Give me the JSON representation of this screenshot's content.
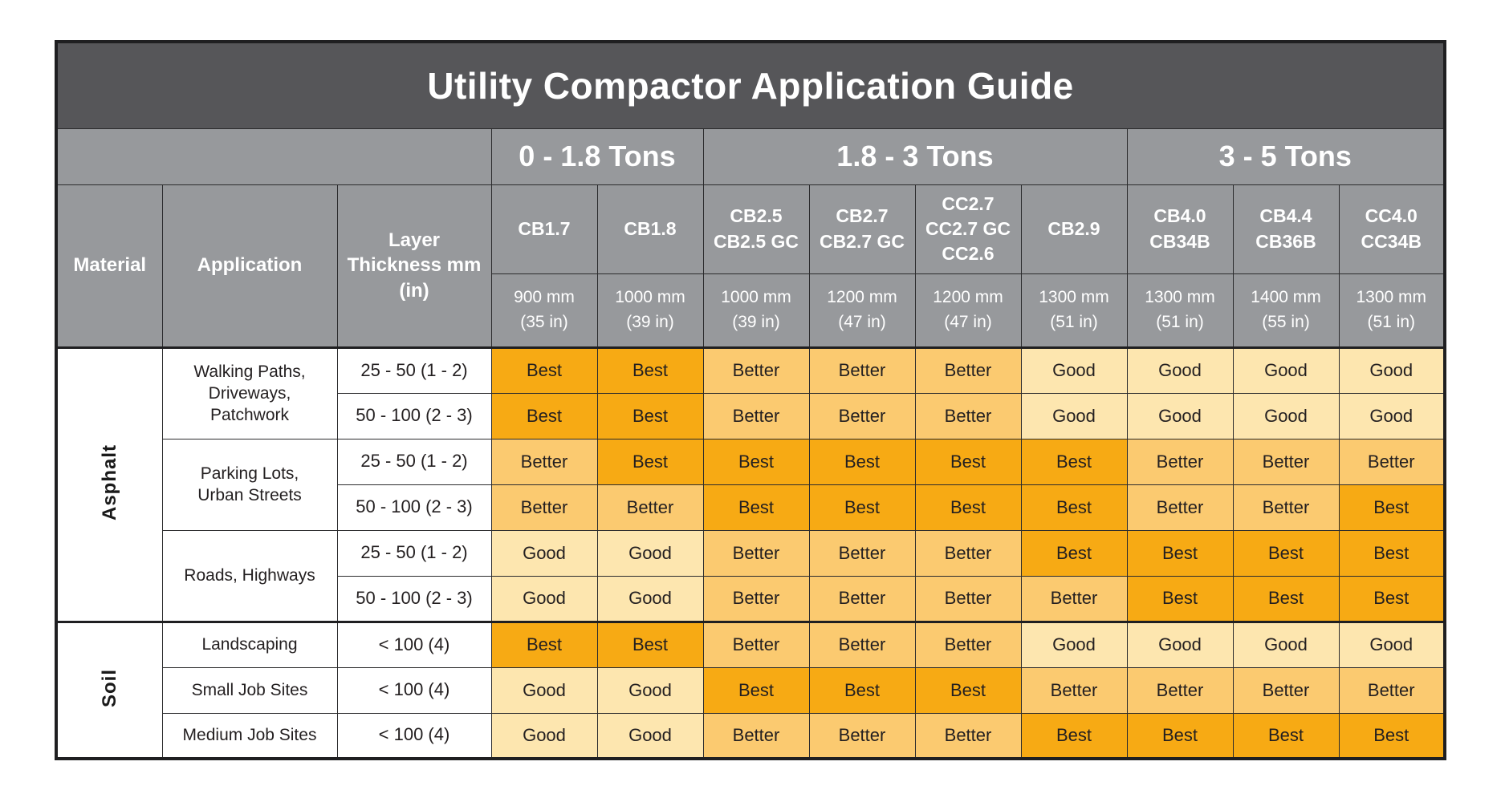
{
  "colors": {
    "title_bg": "#565659",
    "header_bg": "#97999c",
    "border": "#2b2b2d",
    "best": "#F7AA14",
    "better": "#FBCA70",
    "good": "#FDE6AF",
    "text_dark": "#231f20",
    "text_light": "#ffffff"
  },
  "header_labels": {
    "material": "Material",
    "application": "Application",
    "thickness": "Layer\nThickness mm\n(in)"
  },
  "chart_data": {
    "type": "table",
    "title": "Utility Compactor Application Guide",
    "rating_scale": [
      "Good",
      "Better",
      "Best"
    ],
    "tonnage_groups": [
      {
        "label": "0 - 1.8 Tons",
        "span": 2
      },
      {
        "label": "1.8 - 3 Tons",
        "span": 4
      },
      {
        "label": "3 - 5 Tons",
        "span": 3
      }
    ],
    "models": [
      {
        "name": "CB1.7",
        "width": "900 mm\n(35 in)"
      },
      {
        "name": "CB1.8",
        "width": "1000 mm\n(39 in)"
      },
      {
        "name": "CB2.5\nCB2.5 GC",
        "width": "1000 mm\n(39 in)"
      },
      {
        "name": "CB2.7\nCB2.7 GC",
        "width": "1200 mm\n(47 in)"
      },
      {
        "name": "CC2.7\nCC2.7 GC\nCC2.6",
        "width": "1200 mm\n(47 in)"
      },
      {
        "name": "CB2.9",
        "width": "1300 mm\n(51 in)"
      },
      {
        "name": "CB4.0\nCB34B",
        "width": "1300 mm\n(51 in)"
      },
      {
        "name": "CB4.4\nCB36B",
        "width": "1400 mm\n(55 in)"
      },
      {
        "name": "CC4.0\nCC34B",
        "width": "1300 mm\n(51 in)"
      }
    ],
    "rows": [
      {
        "material": {
          "label": "Asphalt",
          "span": 6
        },
        "application": {
          "label": "Walking Paths,\nDriveways,\nPatchwork",
          "span": 2
        },
        "thickness": "25 - 50 (1 - 2)",
        "ratings": [
          "Best",
          "Best",
          "Better",
          "Better",
          "Better",
          "Good",
          "Good",
          "Good",
          "Good"
        ]
      },
      {
        "thickness": "50 - 100 (2 - 3)",
        "ratings": [
          "Best",
          "Best",
          "Better",
          "Better",
          "Better",
          "Good",
          "Good",
          "Good",
          "Good"
        ]
      },
      {
        "application": {
          "label": "Parking Lots,\nUrban Streets",
          "span": 2
        },
        "thickness": "25 - 50 (1 - 2)",
        "ratings": [
          "Better",
          "Best",
          "Best",
          "Best",
          "Best",
          "Best",
          "Better",
          "Better",
          "Better"
        ]
      },
      {
        "thickness": "50 - 100 (2 - 3)",
        "ratings": [
          "Better",
          "Better",
          "Best",
          "Best",
          "Best",
          "Best",
          "Better",
          "Better",
          "Best"
        ]
      },
      {
        "application": {
          "label": "Roads, Highways",
          "span": 2
        },
        "thickness": "25 - 50 (1 - 2)",
        "ratings": [
          "Good",
          "Good",
          "Better",
          "Better",
          "Better",
          "Best",
          "Best",
          "Best",
          "Best"
        ]
      },
      {
        "thickness": "50 - 100 (2 - 3)",
        "ratings": [
          "Good",
          "Good",
          "Better",
          "Better",
          "Better",
          "Better",
          "Best",
          "Best",
          "Best"
        ]
      },
      {
        "material": {
          "label": "Soil",
          "span": 3
        },
        "application": {
          "label": "Landscaping",
          "span": 1
        },
        "thickness": "< 100 (4)",
        "ratings": [
          "Best",
          "Best",
          "Better",
          "Better",
          "Better",
          "Good",
          "Good",
          "Good",
          "Good"
        ]
      },
      {
        "application": {
          "label": "Small Job Sites",
          "span": 1
        },
        "thickness": "< 100 (4)",
        "ratings": [
          "Good",
          "Good",
          "Best",
          "Best",
          "Best",
          "Better",
          "Better",
          "Better",
          "Better"
        ]
      },
      {
        "application": {
          "label": "Medium Job Sites",
          "span": 1
        },
        "thickness": "< 100 (4)",
        "ratings": [
          "Good",
          "Good",
          "Better",
          "Better",
          "Better",
          "Best",
          "Best",
          "Best",
          "Best"
        ]
      }
    ]
  }
}
